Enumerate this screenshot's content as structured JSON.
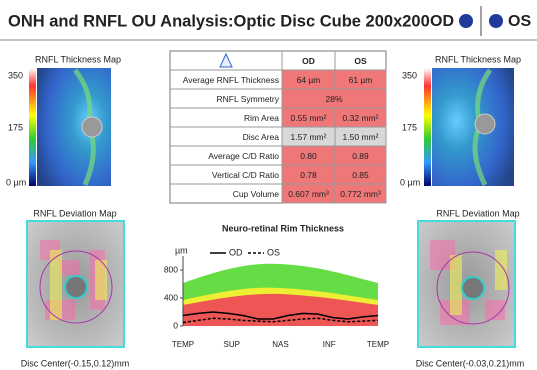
{
  "header": {
    "title": "ONH and RNFL OU Analysis:Optic Disc Cube 200x200",
    "od": "OD",
    "os": "OS"
  },
  "left_panel": {
    "map_title": "RNFL Thickness Map",
    "scale": [
      "350",
      "175",
      "0 µm"
    ],
    "deviation_title": "RNFL Deviation Map",
    "disc_center": "Disc Center(-0.15,0.12)mm"
  },
  "right_panel": {
    "map_title": "RNFL Thickness Map",
    "scale": [
      "350",
      "175",
      "0 µm"
    ],
    "deviation_title": "RNFL Deviation Map",
    "disc_center": "Disc Center(-0.03,0.21)mm"
  },
  "table": {
    "columns": [
      "OD",
      "OS"
    ],
    "rows": [
      [
        "Average RNFL Thickness",
        "64 µm",
        "61 µm"
      ],
      [
        "RNFL Symmetry",
        "28%"
      ],
      [
        "Rim Area",
        "0.55 mm²",
        "0.32 mm²"
      ],
      [
        "Disc Area",
        "1.57 mm²",
        "1.50 mm²"
      ],
      [
        "Average C/D Ratio",
        "0.80",
        "0.89"
      ],
      [
        "Vertical C/D Ratio",
        "0.78",
        "0.85"
      ],
      [
        "Cup Volume",
        "0.607 mm³",
        "0.772 mm³"
      ]
    ]
  },
  "rim_chart": {
    "title": "Neuro-retinal Rim Thickness",
    "y_label": "µm",
    "ylim": [
      0,
      1000
    ],
    "yticks": [
      0,
      400,
      800
    ],
    "categories": [
      "TEMP",
      "SUP",
      "NAS",
      "INF",
      "TEMP"
    ],
    "series": [
      {
        "name": "OD",
        "color": "#000000",
        "values": [
          150,
          180,
          200,
          180,
          150,
          100,
          100,
          150,
          180,
          170,
          120,
          100,
          130,
          150
        ]
      },
      {
        "name": "OS",
        "color": "#000000",
        "values": [
          50,
          80,
          110,
          100,
          80,
          70,
          60,
          80,
          100,
          110,
          80,
          60,
          70,
          80
        ]
      }
    ]
  }
}
